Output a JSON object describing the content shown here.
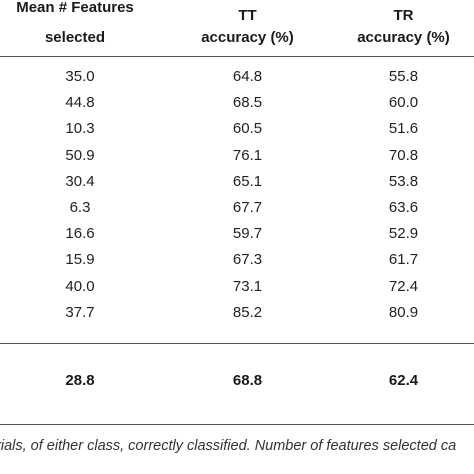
{
  "table": {
    "headers": {
      "col1": [
        "Mean # Features",
        "selected"
      ],
      "col2": [
        "TT",
        "accuracy (%)"
      ],
      "col3": [
        "TR",
        "accuracy (%)"
      ]
    },
    "rows": [
      [
        "35.0",
        "64.8",
        "55.8"
      ],
      [
        "44.8",
        "68.5",
        "60.0"
      ],
      [
        "10.3",
        "60.5",
        "51.6"
      ],
      [
        "50.9",
        "76.1",
        "70.8"
      ],
      [
        "30.4",
        "65.1",
        "53.8"
      ],
      [
        "6.3",
        "67.7",
        "63.6"
      ],
      [
        "16.6",
        "59.7",
        "52.9"
      ],
      [
        "15.9",
        "67.3",
        "61.7"
      ],
      [
        "40.0",
        "73.1",
        "72.4"
      ],
      [
        "37.7",
        "85.2",
        "80.9"
      ]
    ],
    "mean_row": [
      "28.8",
      "68.8",
      "62.4"
    ]
  },
  "footnote": "trials, of either class, correctly classified. Number of features selected ca"
}
